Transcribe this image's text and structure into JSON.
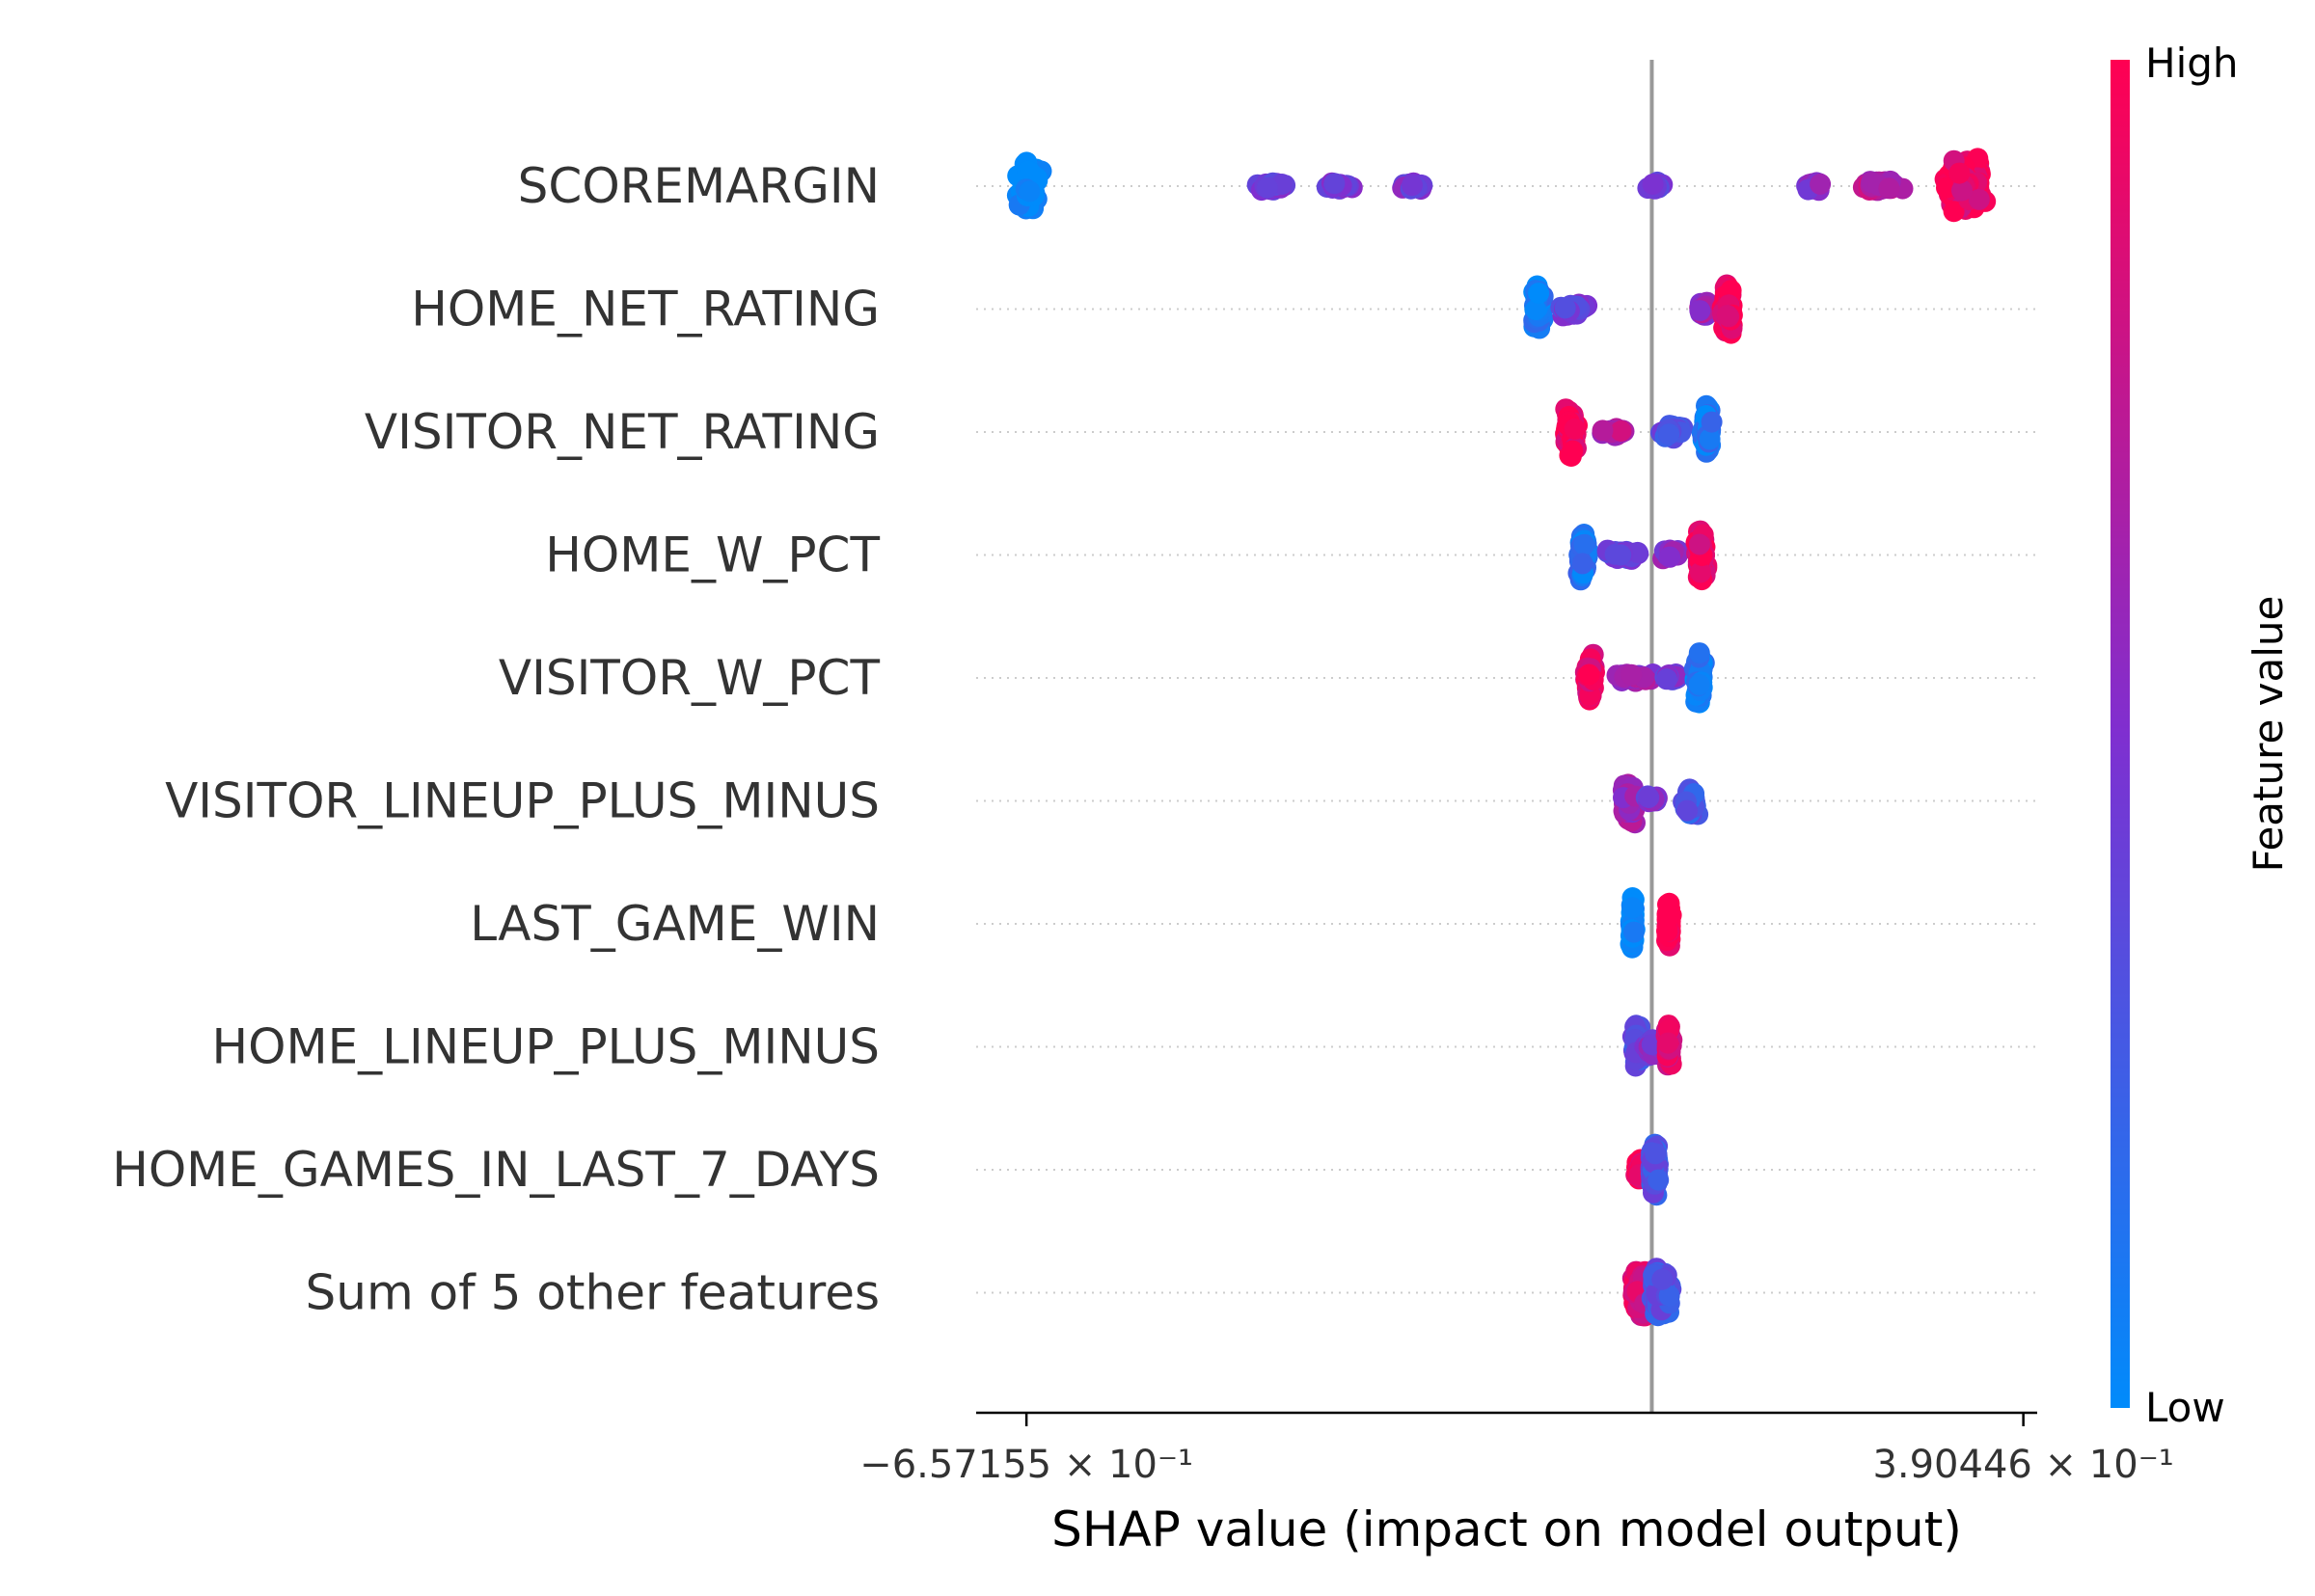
{
  "chart_data": {
    "type": "scatter",
    "subtype": "shap-beeswarm",
    "xlabel": "SHAP value (impact on model output)",
    "xlim": [
      -0.71,
      0.405
    ],
    "x_ticks": [
      {
        "value": -0.657155,
        "label": "−6.57155 × 10⁻¹"
      },
      {
        "value": 0.390446,
        "label": "3.90446 × 10⁻¹"
      }
    ],
    "baseline_x": 0.0,
    "colorbar": {
      "label": "Feature value",
      "high_label": "High",
      "low_label": "Low",
      "colors": {
        "low": "#008bfb",
        "mid": "#7f2fd0",
        "high": "#ff0052"
      }
    },
    "features": [
      {
        "name": "SCOREMARGIN",
        "clusters": [
          {
            "x": -0.655,
            "spread": 0.015,
            "height": 0.42,
            "count": 90,
            "value": 0.0
          },
          {
            "x": -0.4,
            "spread": 0.022,
            "height": 0.07,
            "count": 25,
            "value": 0.42
          },
          {
            "x": -0.33,
            "spread": 0.02,
            "height": 0.07,
            "count": 25,
            "value": 0.44
          },
          {
            "x": -0.255,
            "spread": 0.018,
            "height": 0.07,
            "count": 18,
            "value": 0.46
          },
          {
            "x": 0.005,
            "spread": 0.012,
            "height": 0.08,
            "count": 16,
            "value": 0.4
          },
          {
            "x": 0.17,
            "spread": 0.012,
            "height": 0.08,
            "count": 14,
            "value": 0.55
          },
          {
            "x": 0.24,
            "spread": 0.03,
            "height": 0.1,
            "count": 40,
            "value": 0.72
          },
          {
            "x": 0.33,
            "spread": 0.025,
            "height": 0.48,
            "count": 150,
            "value": 0.92
          }
        ]
      },
      {
        "name": "HOME_NET_RATING",
        "clusters": [
          {
            "x": -0.12,
            "spread": 0.008,
            "height": 0.42,
            "count": 70,
            "value": 0.08
          },
          {
            "x": -0.085,
            "spread": 0.02,
            "height": 0.12,
            "count": 30,
            "value": 0.45
          },
          {
            "x": 0.055,
            "spread": 0.008,
            "height": 0.16,
            "count": 30,
            "value": 0.62
          },
          {
            "x": 0.08,
            "spread": 0.007,
            "height": 0.46,
            "count": 80,
            "value": 0.95
          }
        ]
      },
      {
        "name": "VISITOR_NET_RATING",
        "clusters": [
          {
            "x": -0.085,
            "spread": 0.008,
            "height": 0.44,
            "count": 80,
            "value": 0.95
          },
          {
            "x": -0.04,
            "spread": 0.016,
            "height": 0.07,
            "count": 18,
            "value": 0.7
          },
          {
            "x": 0.02,
            "spread": 0.015,
            "height": 0.12,
            "count": 30,
            "value": 0.35
          },
          {
            "x": 0.058,
            "spread": 0.006,
            "height": 0.44,
            "count": 80,
            "value": 0.1
          }
        ]
      },
      {
        "name": "HOME_W_PCT",
        "clusters": [
          {
            "x": -0.072,
            "spread": 0.006,
            "height": 0.44,
            "count": 70,
            "value": 0.12
          },
          {
            "x": -0.03,
            "spread": 0.025,
            "height": 0.08,
            "count": 40,
            "value": 0.4
          },
          {
            "x": 0.02,
            "spread": 0.012,
            "height": 0.1,
            "count": 25,
            "value": 0.55
          },
          {
            "x": 0.052,
            "spread": 0.007,
            "height": 0.46,
            "count": 80,
            "value": 0.92
          }
        ]
      },
      {
        "name": "VISITOR_W_PCT",
        "clusters": [
          {
            "x": -0.065,
            "spread": 0.006,
            "height": 0.42,
            "count": 70,
            "value": 0.9
          },
          {
            "x": -0.02,
            "spread": 0.025,
            "height": 0.08,
            "count": 40,
            "value": 0.6
          },
          {
            "x": 0.02,
            "spread": 0.012,
            "height": 0.1,
            "count": 25,
            "value": 0.45
          },
          {
            "x": 0.05,
            "spread": 0.006,
            "height": 0.44,
            "count": 80,
            "value": 0.1
          }
        ]
      },
      {
        "name": "VISITOR_LINEUP_PLUS_MINUS",
        "clusters": [
          {
            "x": -0.025,
            "spread": 0.01,
            "height": 0.38,
            "count": 70,
            "value": 0.62
          },
          {
            "x": 0.0,
            "spread": 0.008,
            "height": 0.1,
            "count": 15,
            "value": 0.5
          },
          {
            "x": 0.04,
            "spread": 0.01,
            "height": 0.28,
            "count": 40,
            "value": 0.25
          }
        ]
      },
      {
        "name": "LAST_GAME_WIN",
        "clusters": [
          {
            "x": -0.02,
            "spread": 0.003,
            "height": 0.44,
            "count": 70,
            "value": 0.0
          },
          {
            "x": 0.018,
            "spread": 0.003,
            "height": 0.38,
            "count": 60,
            "value": 1.0
          }
        ]
      },
      {
        "name": "HOME_LINEUP_PLUS_MINUS",
        "clusters": [
          {
            "x": -0.015,
            "spread": 0.006,
            "height": 0.4,
            "count": 50,
            "value": 0.32
          },
          {
            "x": 0.0,
            "spread": 0.01,
            "height": 0.18,
            "count": 30,
            "value": 0.5
          },
          {
            "x": 0.018,
            "spread": 0.004,
            "height": 0.36,
            "count": 45,
            "value": 0.85
          }
        ]
      },
      {
        "name": "HOME_GAMES_IN_LAST_7_DAYS",
        "clusters": [
          {
            "x": -0.012,
            "spread": 0.006,
            "height": 0.22,
            "count": 50,
            "value": 0.95
          },
          {
            "x": 0.003,
            "spread": 0.006,
            "height": 0.46,
            "count": 90,
            "value": 0.3
          }
        ]
      },
      {
        "name": "Sum of 5 other features",
        "clusters": [
          {
            "x": -0.012,
            "spread": 0.012,
            "height": 0.42,
            "count": 110,
            "value": 0.85
          },
          {
            "x": 0.01,
            "spread": 0.014,
            "height": 0.42,
            "count": 110,
            "value": 0.3
          }
        ]
      }
    ]
  }
}
